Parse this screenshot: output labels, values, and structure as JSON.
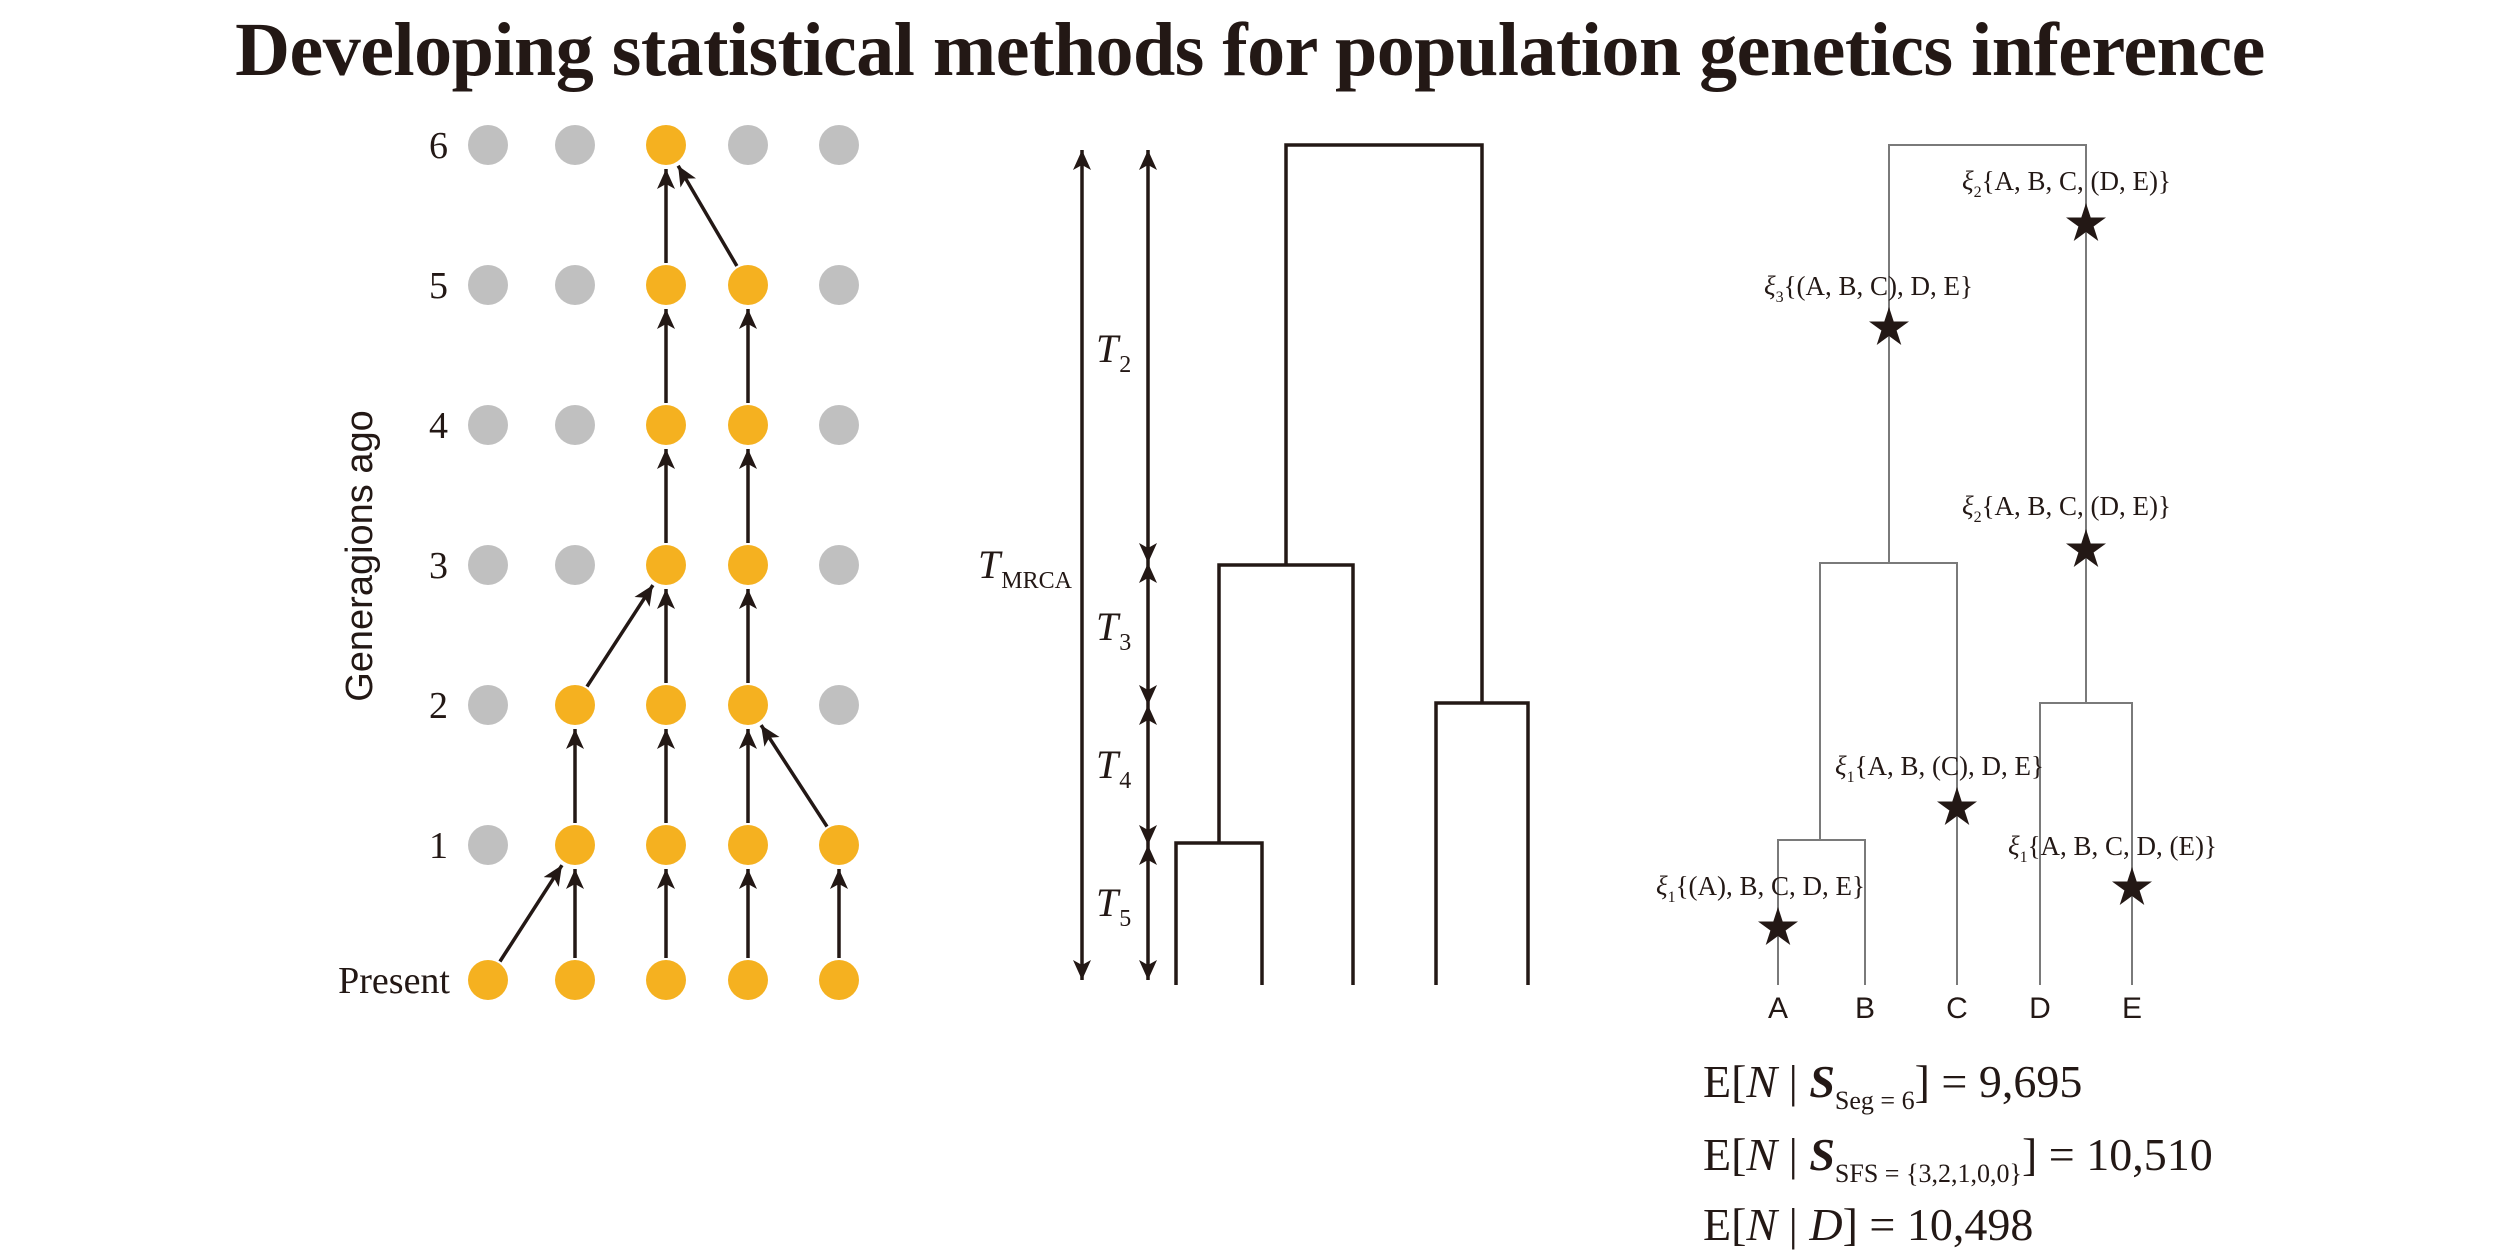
{
  "title": "Developing statistical methods for population genetics inference",
  "colors": {
    "ink": "#231815",
    "active": "#f5b120",
    "inactive": "#c0c0c0",
    "gene_tree": "#7a7a7a"
  },
  "wright_fisher": {
    "y_axis_label": "Generagions ago",
    "generation_labels": [
      "Present",
      "1",
      "2",
      "3",
      "4",
      "5",
      "6"
    ],
    "columns": 5,
    "active": [
      [
        1,
        1,
        1,
        1,
        1
      ],
      [
        0,
        1,
        1,
        1,
        1
      ],
      [
        0,
        1,
        1,
        1,
        0
      ],
      [
        0,
        0,
        1,
        1,
        0
      ],
      [
        0,
        0,
        1,
        1,
        0
      ],
      [
        0,
        0,
        1,
        1,
        0
      ],
      [
        0,
        0,
        1,
        0,
        0
      ]
    ],
    "parents": [
      [
        1,
        1,
        2,
        3,
        4
      ],
      [
        null,
        1,
        2,
        3,
        3
      ],
      [
        null,
        2,
        2,
        3,
        null
      ],
      [
        null,
        null,
        2,
        3,
        null
      ],
      [
        null,
        null,
        2,
        3,
        null
      ],
      [
        null,
        null,
        2,
        2,
        null
      ]
    ]
  },
  "coalescent": {
    "t_mrca": "T",
    "t_mrca_sub": "MRCA",
    "intervals": [
      {
        "label": "T",
        "sub": "2"
      },
      {
        "label": "T",
        "sub": "3"
      },
      {
        "label": "T",
        "sub": "4"
      },
      {
        "label": "T",
        "sub": "5"
      }
    ]
  },
  "gene_tree": {
    "leaves": [
      "A",
      "B",
      "C",
      "D",
      "E"
    ],
    "mutations": [
      {
        "xi": "ξ",
        "sub": "2",
        "pattern": "{A, B, C, (D, E)}"
      },
      {
        "xi": "ξ",
        "sub": "3",
        "pattern": "{(A, B, C), D, E}"
      },
      {
        "xi": "ξ",
        "sub": "2",
        "pattern": "{A, B, C, (D, E)}"
      },
      {
        "xi": "ξ",
        "sub": "1",
        "pattern": "{A, B, (C), D, E}"
      },
      {
        "xi": "ξ",
        "sub": "1",
        "pattern": "{A, B, C, D, (E)}"
      },
      {
        "xi": "ξ",
        "sub": "1",
        "pattern": "{(A), B, C, D, E}"
      }
    ]
  },
  "estimates": [
    {
      "prefix": "E[",
      "n": "N",
      "bar": " | ",
      "stat": "S",
      "stat_sub": "Seg = 6",
      "suffix": "] = 9,695"
    },
    {
      "prefix": "E[",
      "n": "N",
      "bar": " | ",
      "stat": "S",
      "stat_sub": "SFS = {3,2,1,0,0}",
      "suffix": "] = 10,510"
    },
    {
      "prefix": "E[",
      "n": "N",
      "bar": " | ",
      "stat": "D",
      "stat_sub": "",
      "suffix": "] = 10,498"
    }
  ]
}
